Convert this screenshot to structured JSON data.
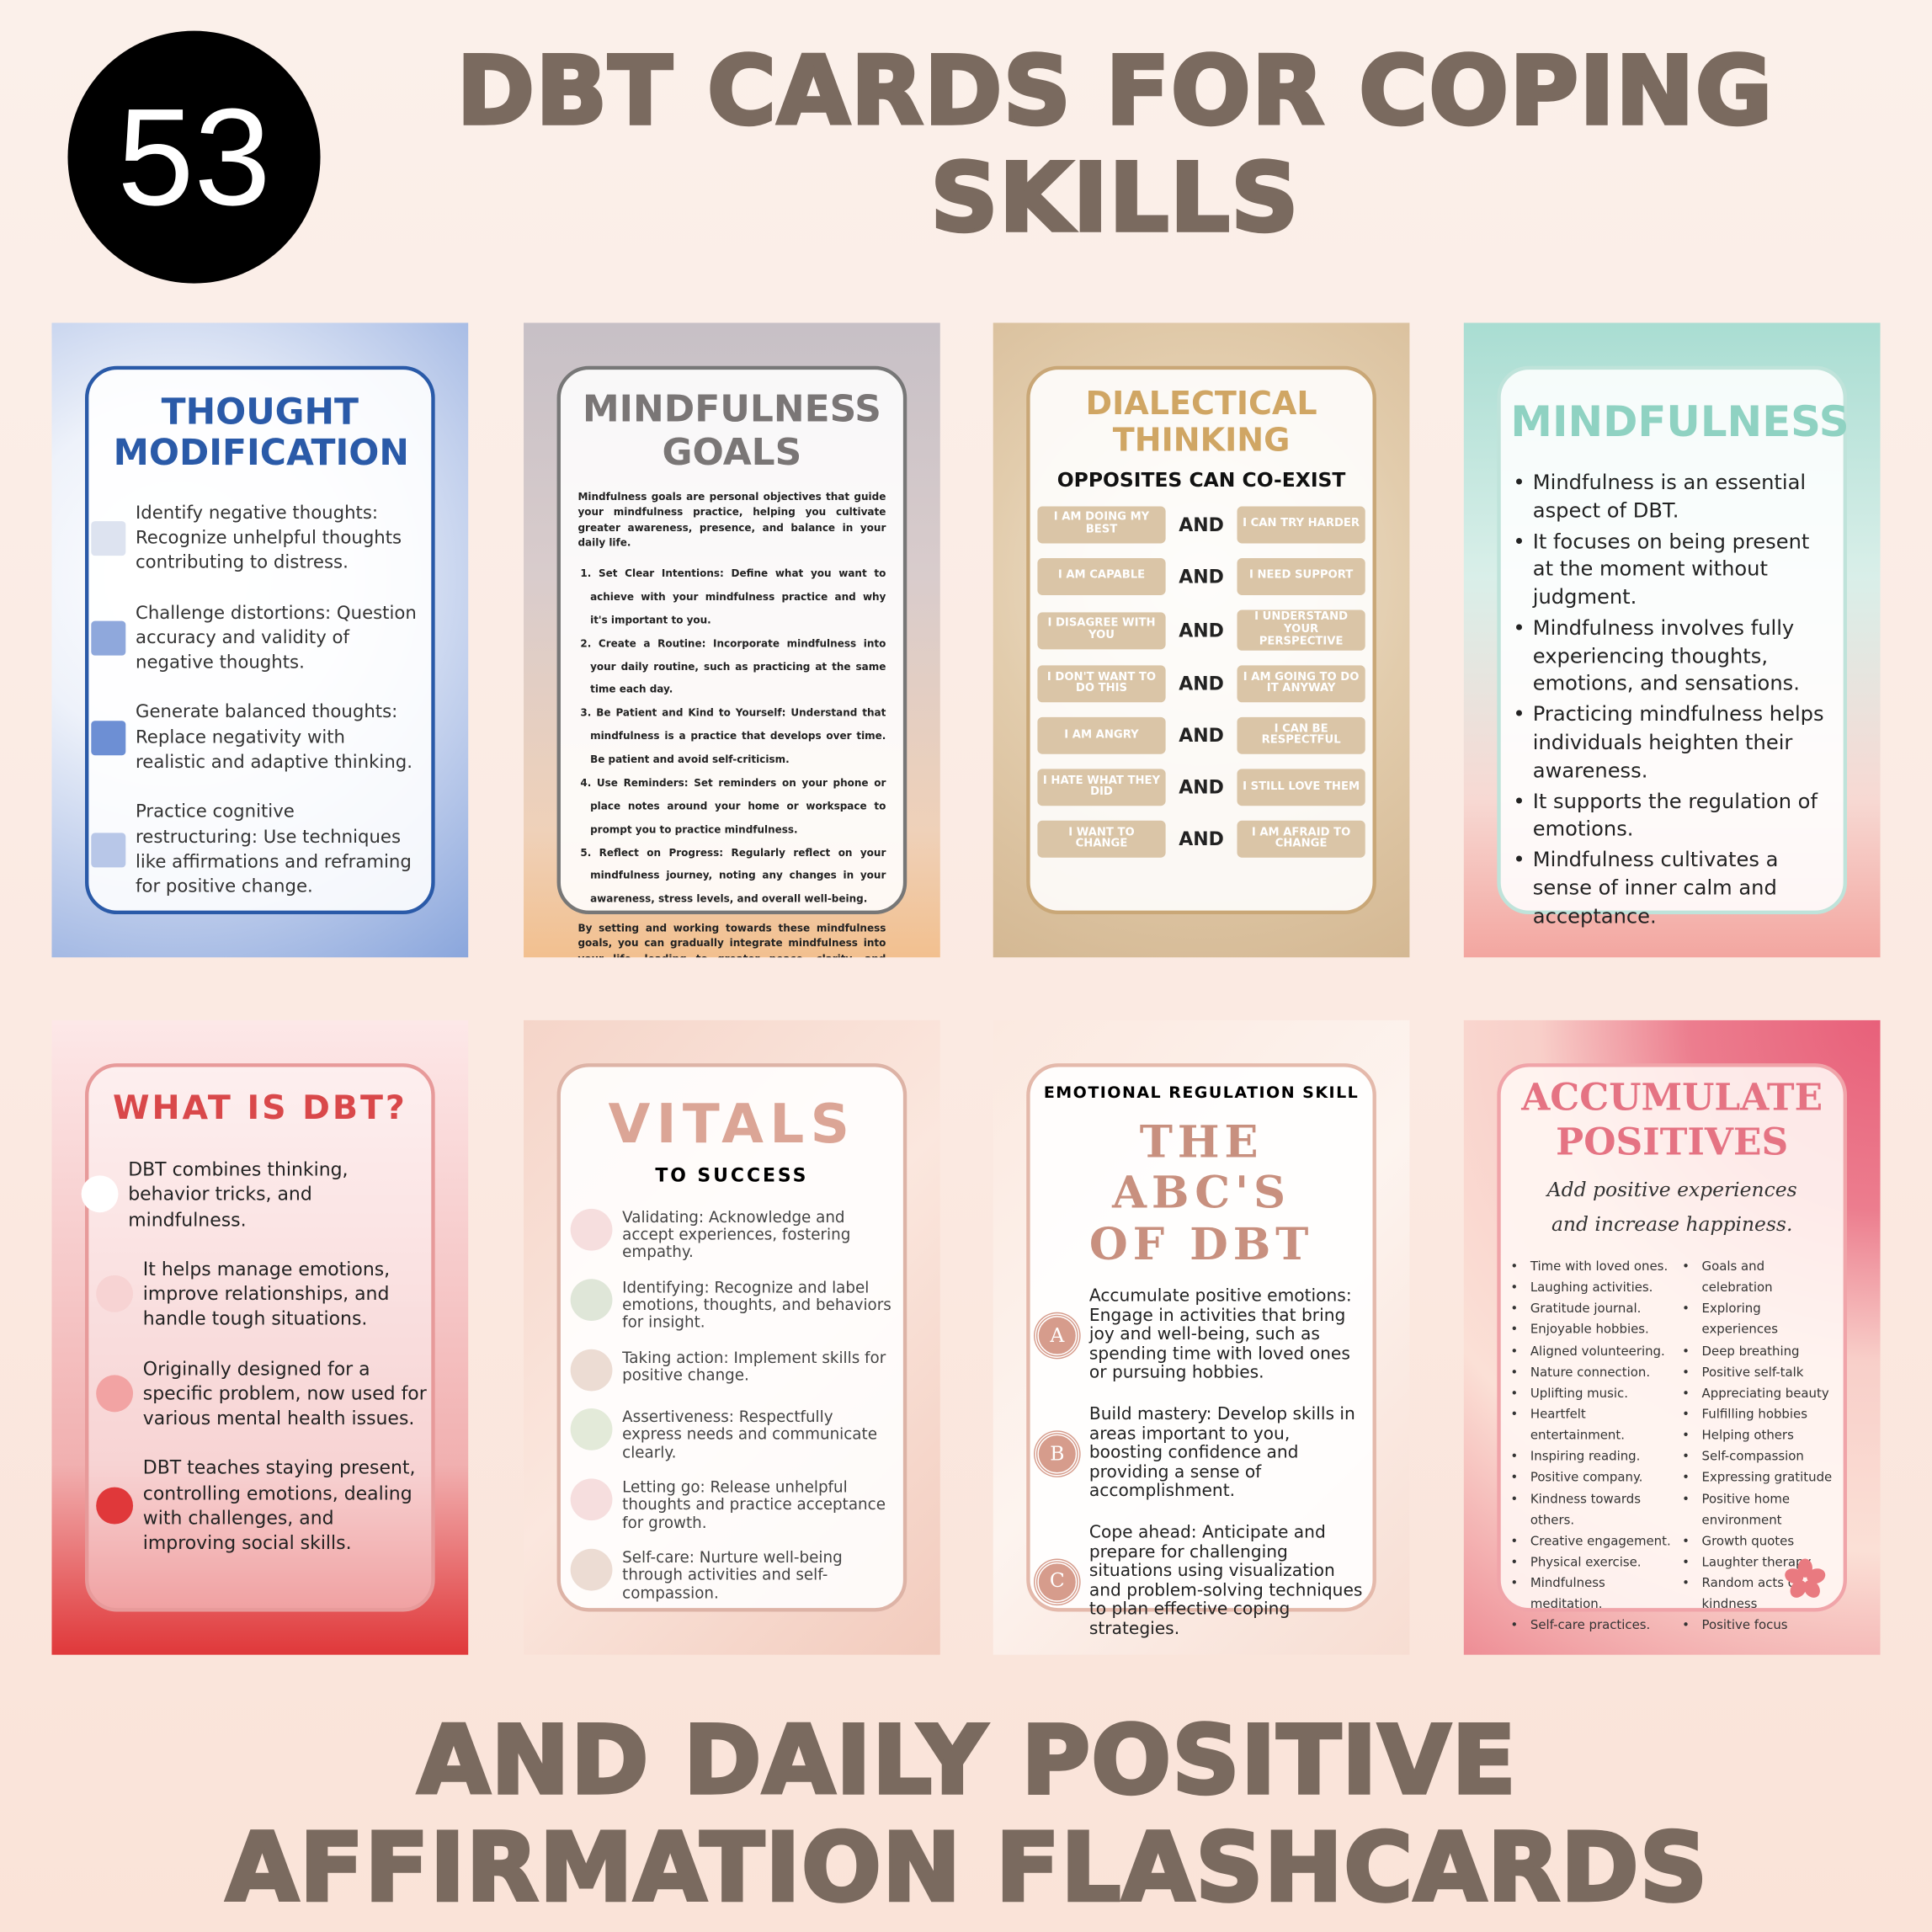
{
  "badge": "53",
  "title": "DBT CARDS FOR COPING SKILLS",
  "subtitle": "AND DAILY POSITIVE AFFIRMATION FLASHCARDS",
  "colors": {
    "heading": "#7a6a5f",
    "badge": "#000000"
  },
  "cards": {
    "thought": {
      "title": "THOUGHT MODIFICATION",
      "items": [
        {
          "text": "Identify negative thoughts: Recognize unhelpful thoughts contributing to distress.",
          "color": "#dde3f0"
        },
        {
          "text": "Challenge distortions: Question accuracy and validity of negative thoughts.",
          "color": "#8fa8dc"
        },
        {
          "text": "Generate balanced thoughts: Replace negativity with realistic and adaptive thinking.",
          "color": "#6d8fd4"
        },
        {
          "text": "Practice cognitive restructuring: Use techniques like affirmations and reframing for positive change.",
          "color": "#b8c7e8"
        }
      ]
    },
    "goals": {
      "title": "MINDFULNESS GOALS",
      "intro": "Mindfulness goals are personal objectives that guide your mindfulness practice, helping you cultivate greater awareness, presence, and balance in your daily life.",
      "items": [
        "1. Set Clear Intentions: Define what you want to achieve with your mindfulness practice and why it's important to you.",
        "2. Create a Routine: Incorporate mindfulness into your daily routine, such as practicing at the same time each day.",
        "3. Be Patient and Kind to Yourself: Understand that mindfulness is a practice that develops over time. Be patient and avoid self-criticism.",
        "4. Use Reminders: Set reminders on your phone or place notes around your home or workspace to prompt you to practice mindfulness.",
        "5. Reflect on Progress: Regularly reflect on your mindfulness journey, noting any changes in your awareness, stress levels, and overall well-being."
      ],
      "outro": "By setting and working towards these mindfulness goals, you can gradually integrate mindfulness into your life, leading to greater peace, clarity, and resilience."
    },
    "dialectical": {
      "title": "DIALECTICAL THINKING",
      "subtitle": "OPPOSITES CAN CO-EXIST",
      "and": "AND",
      "pairs": [
        [
          "I AM DOING MY BEST",
          "I CAN TRY HARDER"
        ],
        [
          "I AM CAPABLE",
          "I NEED SUPPORT"
        ],
        [
          "I DISAGREE WITH YOU",
          "I UNDERSTAND YOUR PERSPECTIVE"
        ],
        [
          "I DON'T WANT TO DO THIS",
          "I AM GOING TO DO IT ANYWAY"
        ],
        [
          "I AM ANGRY",
          "I CAN BE RESPECTFUL"
        ],
        [
          "I HATE WHAT THEY DID",
          "I STILL LOVE THEM"
        ],
        [
          "I WANT TO CHANGE",
          "I AM AFRAID TO CHANGE"
        ]
      ]
    },
    "mindfulness": {
      "title": "MINDFULNESS",
      "items": [
        "Mindfulness is an essential aspect of DBT.",
        "It focuses on being present at the moment without judgment.",
        "Mindfulness involves fully experiencing thoughts, emotions, and sensations.",
        "Practicing mindfulness helps individuals heighten their awareness.",
        "It supports the regulation of emotions.",
        "Mindfulness cultivates a sense of inner calm and acceptance."
      ]
    },
    "whatis": {
      "title": "WHAT IS DBT?",
      "items": [
        {
          "text": "DBT combines thinking, behavior tricks, and mindfulness.",
          "color": "#ffffff"
        },
        {
          "text": "It helps manage emotions, improve relationships, and handle tough situations.",
          "color": "#f7d3d3"
        },
        {
          "text": "Originally designed for a specific problem, now used for various mental health issues.",
          "color": "#f2a3a3"
        },
        {
          "text": "DBT teaches staying present, controlling emotions, dealing with challenges, and improving social skills.",
          "color": "#e0383a"
        }
      ]
    },
    "vitals": {
      "title": "VITALS",
      "subtitle": "TO SUCCESS",
      "items": [
        {
          "text": "Validating: Acknowledge and accept experiences, fostering empathy.",
          "color": "#f6dede"
        },
        {
          "text": "Identifying: Recognize and label emotions, thoughts, and behaviors for insight.",
          "color": "#dfe6d8"
        },
        {
          "text": "Taking action: Implement skills for positive change.",
          "color": "#ecdcd3"
        },
        {
          "text": "Assertiveness: Respectfully express needs and communicate clearly.",
          "color": "#e3ead9"
        },
        {
          "text": "Letting go: Release unhelpful thoughts and practice acceptance for growth.",
          "color": "#f6dede"
        },
        {
          "text": "Self-care: Nurture well-being through activities and self-compassion.",
          "color": "#ecdcd3"
        }
      ]
    },
    "abc": {
      "kicker": "EMOTIONAL REGULATION SKILL",
      "title": "THE ABC'S OF DBT",
      "items": [
        {
          "letter": "A",
          "text": "Accumulate positive emotions: Engage in activities that bring joy and well-being, such as spending time with loved ones or pursuing hobbies."
        },
        {
          "letter": "B",
          "text": "Build mastery: Develop skills in areas important to you, boosting confidence and providing a sense of accomplishment."
        },
        {
          "letter": "C",
          "text": "Cope ahead: Anticipate and prepare for challenging situations using visualization and problem-solving techniques to plan effective coping strategies."
        }
      ]
    },
    "accumulate": {
      "title": "ACCUMULATE POSITIVES",
      "tagline": "Add positive experiences and increase happiness.",
      "left": [
        "Time with loved ones.",
        "Laughing activities.",
        "Gratitude journal.",
        "Enjoyable hobbies.",
        "Aligned volunteering.",
        "Nature connection.",
        "Uplifting music.",
        "Heartfelt entertainment.",
        "Inspiring reading.",
        "Positive company.",
        "Kindness towards others.",
        "Creative engagement.",
        "Physical exercise.",
        "Mindfulness meditation.",
        "Self-care practices."
      ],
      "right": [
        "Goals and celebration",
        "Exploring experiences",
        "Deep breathing",
        "Positive self-talk",
        "Appreciating beauty",
        "Fulfilling hobbies",
        "Helping others",
        "Self-compassion",
        "Expressing gratitude",
        "Positive home environment",
        "Growth quotes",
        "Laughter therapy",
        "Random acts of kindness",
        "Positive focus"
      ]
    }
  }
}
